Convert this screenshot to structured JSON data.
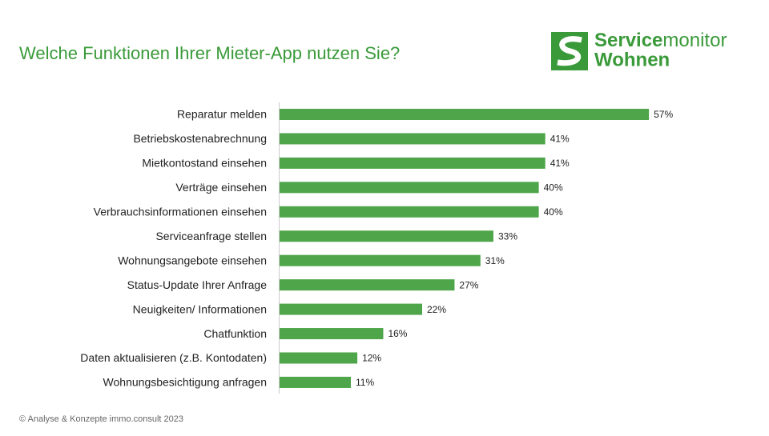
{
  "chart_data": {
    "type": "bar",
    "orientation": "horizontal",
    "title": "Welche Funktionen Ihrer Mieter-App nutzen Sie?",
    "categories": [
      "Reparatur melden",
      "Betriebskostenabrechnung",
      "Mietkontostand einsehen",
      "Verträge einsehen",
      "Verbrauchsinformationen einsehen",
      "Serviceanfrage stellen",
      "Wohnungsangebote einsehen",
      "Status-Update Ihrer Anfrage",
      "Neuigkeiten/ Informationen",
      "Chatfunktion",
      "Daten aktualisieren (z.B. Kontodaten)",
      "Wohnungsbesichtigung anfragen"
    ],
    "values": [
      57,
      41,
      41,
      40,
      40,
      33,
      31,
      27,
      22,
      16,
      12,
      11
    ],
    "value_labels": [
      "57%",
      "41%",
      "41%",
      "40%",
      "40%",
      "33%",
      "31%",
      "27%",
      "22%",
      "16%",
      "12%",
      "11%"
    ],
    "color": "#4ea54a"
  },
  "logo": {
    "part1": "Service",
    "part2": "monitor",
    "part3": "Wohnen"
  },
  "footer": "© Analyse & Konzepte immo.consult 2023"
}
